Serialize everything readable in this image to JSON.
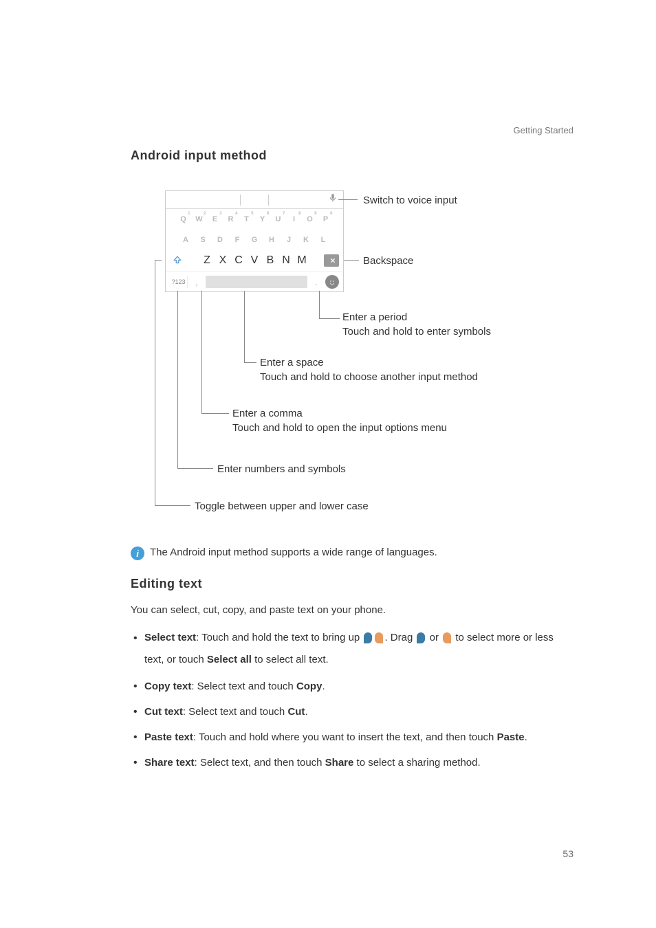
{
  "header": {
    "breadcrumb": "Getting Started"
  },
  "section1": {
    "title": "Android  input  method"
  },
  "keyboard": {
    "row1": [
      "Q",
      "W",
      "E",
      "R",
      "T",
      "Y",
      "U",
      "I",
      "O",
      "P"
    ],
    "row1_sup": [
      "1",
      "2",
      "3",
      "4",
      "5",
      "6",
      "7",
      "8",
      "9",
      "0"
    ],
    "row2": [
      "A",
      "S",
      "D",
      "F",
      "G",
      "H",
      "J",
      "K",
      "L"
    ],
    "row3": [
      "Z",
      "X",
      "C",
      "V",
      "B",
      "N",
      "M"
    ],
    "numkey": "?123",
    "comma": ",",
    "period": ".",
    "smile": "☻"
  },
  "callouts": {
    "voice": "Switch to voice input",
    "backspace": "Backspace",
    "period1": "Enter a period",
    "period2": "Touch and hold to enter symbols",
    "space1": "Enter a space",
    "space2": "Touch and hold to choose another input method",
    "comma1": "Enter a comma",
    "comma2": "Touch and hold to open the input options menu",
    "numbers": "Enter numbers and symbols",
    "shift": "Toggle between upper and lower case"
  },
  "footnote": "The Android input method supports a wide range of languages.",
  "section2": {
    "title": "Editing  text"
  },
  "editing": {
    "intro": "You can select, cut, copy, and paste text on your phone.",
    "items": {
      "select": {
        "bold": "Select text",
        "t1": ": Touch and hold the text to bring up ",
        "t2": ". Drag ",
        "t3": " or ",
        "t4": " to select more or less text, or touch ",
        "bold2": "Select all",
        "t5": " to select all text."
      },
      "copy": {
        "bold": "Copy text",
        "t1": ": Select text and touch ",
        "bold2": "Copy",
        "t2": "."
      },
      "cut": {
        "bold": "Cut text",
        "t1": ": Select text and touch ",
        "bold2": "Cut",
        "t2": "."
      },
      "paste": {
        "bold": "Paste text",
        "t1": ": Touch and hold where you want to insert the text, and then touch ",
        "bold2": "Paste",
        "t2": "."
      },
      "share": {
        "bold": "Share text",
        "t1": ": Select text, and then touch ",
        "bold2": "Share",
        "t2": " to select a sharing method."
      }
    }
  },
  "colors": {
    "handle_left": "#3a7ca5",
    "handle_right": "#e89b5c",
    "info_bg": "#44a0d8"
  },
  "pagenum": "53"
}
